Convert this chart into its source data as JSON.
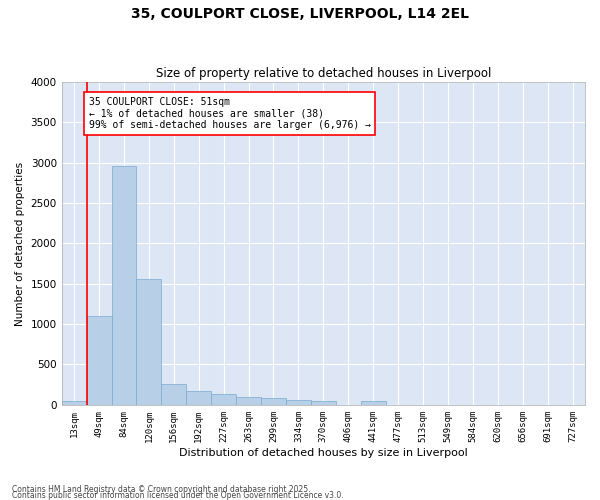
{
  "title_line1": "35, COULPORT CLOSE, LIVERPOOL, L14 2EL",
  "title_line2": "Size of property relative to detached houses in Liverpool",
  "xlabel": "Distribution of detached houses by size in Liverpool",
  "ylabel": "Number of detached properties",
  "bar_color": "#b8cfe8",
  "bar_edge_color": "#7aaad0",
  "background_color": "#dce6f5",
  "grid_color": "#ffffff",
  "fig_background": "#ffffff",
  "categories": [
    "13sqm",
    "49sqm",
    "84sqm",
    "120sqm",
    "156sqm",
    "192sqm",
    "227sqm",
    "263sqm",
    "299sqm",
    "334sqm",
    "370sqm",
    "406sqm",
    "441sqm",
    "477sqm",
    "513sqm",
    "549sqm",
    "584sqm",
    "620sqm",
    "656sqm",
    "691sqm",
    "727sqm"
  ],
  "values": [
    50,
    1100,
    2960,
    1560,
    260,
    175,
    130,
    95,
    85,
    65,
    45,
    0,
    45,
    0,
    0,
    0,
    0,
    0,
    0,
    0,
    0
  ],
  "ylim": [
    0,
    4000
  ],
  "yticks": [
    0,
    500,
    1000,
    1500,
    2000,
    2500,
    3000,
    3500,
    4000
  ],
  "annotation_title": "35 COULPORT CLOSE: 51sqm",
  "annotation_line1": "← 1% of detached houses are smaller (38)",
  "annotation_line2": "99% of semi-detached houses are larger (6,976) →",
  "footer_line1": "Contains HM Land Registry data © Crown copyright and database right 2025.",
  "footer_line2": "Contains public sector information licensed under the Open Government Licence v3.0."
}
